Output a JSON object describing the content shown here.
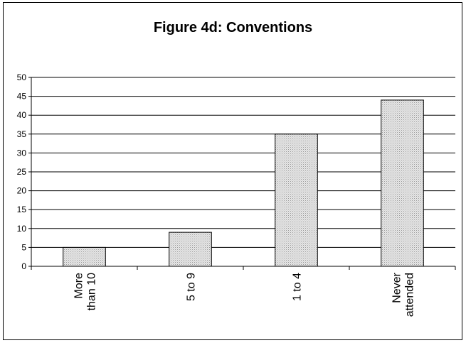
{
  "chart_data": {
    "type": "bar",
    "title": "Figure 4d: Conventions",
    "categories": [
      [
        "More",
        "than 10"
      ],
      [
        "5 to 9"
      ],
      [
        "1 to 4"
      ],
      [
        "Never",
        "attended"
      ]
    ],
    "values": [
      5,
      9,
      35,
      44
    ],
    "ylim": [
      0,
      50
    ],
    "yticks": [
      0,
      5,
      10,
      15,
      20,
      25,
      30,
      35,
      40,
      45,
      50
    ],
    "grid": true,
    "bar_fill": "#d9d9d9",
    "bar_stroke": "#000000"
  }
}
